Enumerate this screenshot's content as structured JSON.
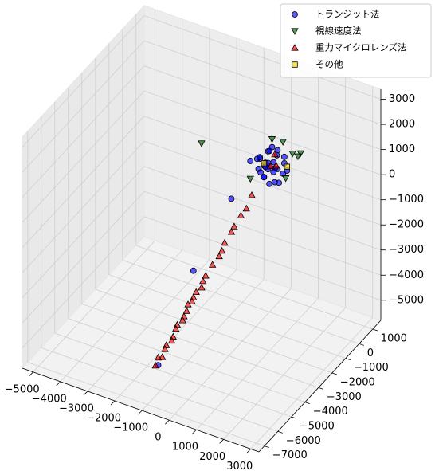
{
  "chart_data": {
    "type": "scatter3d",
    "xlim": [
      -5400,
      3300
    ],
    "ylim": [
      -7400,
      1600
    ],
    "zlim": [
      -5800,
      3400
    ],
    "xticks": [
      {
        "value": -5000,
        "label": "−5000"
      },
      {
        "value": -4000,
        "label": "−4000"
      },
      {
        "value": -3000,
        "label": "−3000"
      },
      {
        "value": -2000,
        "label": "−2000"
      },
      {
        "value": -1000,
        "label": "−1000"
      },
      0,
      1000,
      2000,
      3000
    ],
    "yticks": [
      {
        "value": -7000,
        "label": "−7000"
      },
      {
        "value": -6000,
        "label": "−6000"
      },
      {
        "value": -5000,
        "label": "−5000"
      },
      {
        "value": -4000,
        "label": "−4000"
      },
      {
        "value": -3000,
        "label": "−3000"
      },
      {
        "value": -2000,
        "label": "−2000"
      },
      {
        "value": -1000,
        "label": "−1000"
      },
      0,
      1000
    ],
    "zticks": [
      {
        "value": -5000,
        "label": "−5000"
      },
      {
        "value": -4000,
        "label": "−4000"
      },
      {
        "value": -3000,
        "label": "−3000"
      },
      {
        "value": -2000,
        "label": "−2000"
      },
      {
        "value": -1000,
        "label": "−1000"
      },
      0,
      1000,
      2000,
      3000
    ],
    "grid": true,
    "legend": "upper right",
    "series": [
      {
        "name": "トランジット法",
        "color": "#0000ff",
        "marker": "circle",
        "x": [
          0,
          200,
          -300,
          400,
          -200,
          100,
          -400,
          300,
          -100,
          500,
          0,
          -500,
          200,
          -200,
          300,
          100,
          -300,
          400,
          0,
          -100,
          600,
          -600,
          100,
          -200,
          300,
          -400,
          200,
          0,
          150,
          -250,
          -800,
          -1100,
          -1200
        ],
        "y": [
          0,
          -100,
          200,
          300,
          -300,
          400,
          -100,
          -200,
          100,
          0,
          -400,
          300,
          200,
          0,
          500,
          -300,
          -200,
          -400,
          300,
          -100,
          100,
          -200,
          0,
          400,
          100,
          500,
          -500,
          0,
          250,
          -150,
          -1200,
          -3400,
          -5800
        ],
        "z": [
          0,
          300,
          -200,
          100,
          400,
          -300,
          200,
          -400,
          500,
          -100,
          -200,
          0,
          600,
          -500,
          200,
          100,
          -100,
          300,
          -400,
          0,
          0,
          100,
          800,
          300,
          -600,
          -300,
          500,
          -700,
          350,
          -250,
          -900,
          -2600,
          -5000
        ]
      },
      {
        "name": "視線速度法",
        "color": "#006400",
        "marker": "triangle-down",
        "x": [
          -1500,
          400,
          200,
          -300,
          600,
          500,
          -400,
          700
        ],
        "y": [
          -2000,
          1500,
          600,
          800,
          900,
          200,
          -600,
          300
        ],
        "z": [
          1500,
          -200,
          700,
          500,
          100,
          -400,
          -300,
          600
        ]
      },
      {
        "name": "重力マイクロレンズ法",
        "color": "#ff0000",
        "marker": "triangle-up",
        "x": [
          -200,
          -200,
          -300,
          -400,
          -400,
          -500,
          -500,
          -500,
          -600,
          -700,
          -700,
          -700,
          -800,
          -800,
          -800,
          -900,
          -900,
          -900,
          -900,
          -1000,
          -1000,
          -1000,
          -1000,
          -1100,
          -1100,
          -1100,
          -1200,
          -1200,
          100,
          -100,
          300
        ],
        "y": [
          -900,
          -1300,
          -1500,
          -1800,
          -2000,
          -2300,
          -2500,
          -2700,
          -3000,
          -3300,
          -3500,
          -3600,
          -3800,
          -4000,
          -4100,
          -4200,
          -4300,
          -4500,
          -4600,
          -4800,
          -4900,
          -5100,
          -5200,
          -5400,
          -5500,
          -5700,
          -5800,
          -6000,
          200,
          300,
          -100
        ],
        "z": [
          -700,
          -1000,
          -1200,
          -1500,
          -1600,
          -1900,
          -2100,
          -2200,
          -2400,
          -2700,
          -2800,
          -3000,
          -3100,
          -3200,
          -3300,
          -3400,
          -3600,
          -3700,
          -3800,
          -3900,
          -4000,
          -4200,
          -4300,
          -4400,
          -4500,
          -4700,
          -4700,
          -4900,
          400,
          -200,
          200
        ]
      },
      {
        "name": "その他",
        "color": "#ffd700",
        "marker": "square",
        "x": [
          500,
          -100
        ],
        "y": [
          300,
          -200
        ],
        "z": [
          0,
          200
        ]
      }
    ]
  }
}
